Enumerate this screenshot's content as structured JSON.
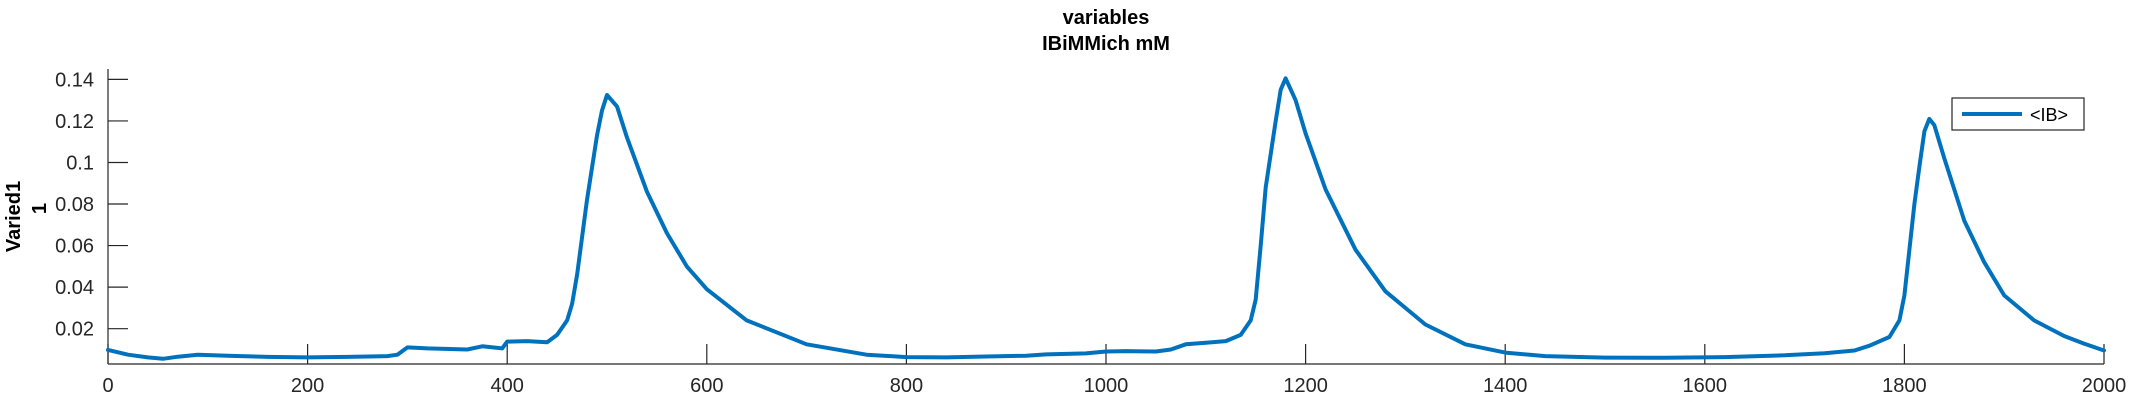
{
  "chart_data": {
    "type": "line",
    "title_line1": "variables",
    "title_line2": "IBiMMich mM",
    "ylabel_line1": "Varied1",
    "ylabel_line2": "1",
    "xlabel": "",
    "xlim": [
      0,
      2000
    ],
    "ylim": [
      0.003,
      0.145
    ],
    "x_ticks": [
      0,
      200,
      400,
      600,
      800,
      1000,
      1200,
      1400,
      1600,
      1800,
      2000
    ],
    "y_ticks": [
      0.02,
      0.04,
      0.06,
      0.08,
      0.1,
      0.12,
      0.14
    ],
    "y_tick_labels": [
      "0.02",
      "0.04",
      "0.06",
      "0.08",
      "0.1",
      "0.12",
      "0.14"
    ],
    "grid": false,
    "legend_position": "top-right",
    "series": [
      {
        "name": "<IB>",
        "color": "#0072bd",
        "x": [
          0,
          20,
          40,
          55,
          70,
          90,
          120,
          160,
          200,
          240,
          280,
          290,
          300,
          320,
          360,
          375,
          395,
          400,
          420,
          440,
          450,
          460,
          465,
          470,
          480,
          490,
          495,
          500,
          510,
          520,
          540,
          560,
          580,
          600,
          640,
          700,
          760,
          800,
          840,
          880,
          920,
          940,
          980,
          1000,
          1020,
          1050,
          1065,
          1080,
          1100,
          1120,
          1135,
          1145,
          1150,
          1155,
          1160,
          1170,
          1175,
          1180,
          1190,
          1200,
          1220,
          1250,
          1280,
          1320,
          1360,
          1400,
          1440,
          1500,
          1560,
          1620,
          1680,
          1720,
          1750,
          1765,
          1785,
          1795,
          1800,
          1805,
          1810,
          1815,
          1820,
          1825,
          1830,
          1840,
          1860,
          1880,
          1900,
          1930,
          1960,
          1980,
          2000
        ],
        "values": [
          0.0098,
          0.0075,
          0.0062,
          0.0055,
          0.0065,
          0.0075,
          0.007,
          0.0064,
          0.0062,
          0.0064,
          0.0068,
          0.0075,
          0.011,
          0.0105,
          0.01,
          0.0115,
          0.0105,
          0.0138,
          0.014,
          0.0135,
          0.017,
          0.024,
          0.032,
          0.046,
          0.082,
          0.113,
          0.125,
          0.1325,
          0.127,
          0.112,
          0.086,
          0.066,
          0.05,
          0.039,
          0.024,
          0.0125,
          0.0075,
          0.0063,
          0.0062,
          0.0066,
          0.007,
          0.0076,
          0.0081,
          0.009,
          0.0092,
          0.009,
          0.01,
          0.0125,
          0.0132,
          0.014,
          0.017,
          0.024,
          0.034,
          0.06,
          0.088,
          0.12,
          0.135,
          0.1405,
          0.13,
          0.114,
          0.087,
          0.058,
          0.038,
          0.022,
          0.0125,
          0.0085,
          0.0068,
          0.0061,
          0.006,
          0.0063,
          0.0072,
          0.0082,
          0.0095,
          0.0118,
          0.016,
          0.024,
          0.036,
          0.058,
          0.08,
          0.098,
          0.115,
          0.121,
          0.118,
          0.102,
          0.072,
          0.052,
          0.036,
          0.024,
          0.0165,
          0.0128,
          0.0095
        ]
      }
    ]
  }
}
